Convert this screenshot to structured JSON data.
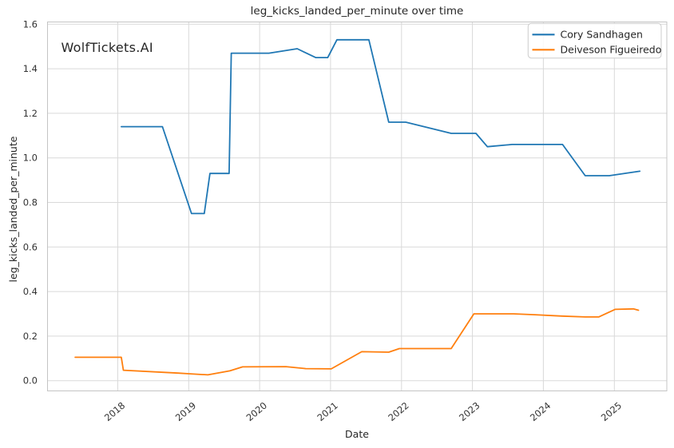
{
  "watermark": {
    "text": "WolfTickets.AI",
    "color": "#cdcdcd"
  },
  "chart_data": {
    "type": "line",
    "title": "leg_kicks_landed_per_minute over time",
    "xlabel": "Date",
    "ylabel": "leg_kicks_landed_per_minute",
    "grid": true,
    "legend_position": "upper-right",
    "x_domain": [
      2017.01,
      2025.74
    ],
    "y_domain": [
      -0.046,
      1.61
    ],
    "x_ticks": [
      {
        "v": 2018,
        "label": "2018"
      },
      {
        "v": 2019,
        "label": "2019"
      },
      {
        "v": 2020,
        "label": "2020"
      },
      {
        "v": 2021,
        "label": "2021"
      },
      {
        "v": 2022,
        "label": "2022"
      },
      {
        "v": 2023,
        "label": "2023"
      },
      {
        "v": 2024,
        "label": "2024"
      },
      {
        "v": 2025,
        "label": "2025"
      }
    ],
    "y_ticks": [
      {
        "v": 0.0,
        "label": "0.0"
      },
      {
        "v": 0.2,
        "label": "0.2"
      },
      {
        "v": 0.4,
        "label": "0.4"
      },
      {
        "v": 0.6,
        "label": "0.6"
      },
      {
        "v": 0.8,
        "label": "0.8"
      },
      {
        "v": 1.0,
        "label": "1.0"
      },
      {
        "v": 1.2,
        "label": "1.2"
      },
      {
        "v": 1.4,
        "label": "1.4"
      },
      {
        "v": 1.6,
        "label": "1.6"
      }
    ],
    "colors": {
      "grid": "#d9d9d9",
      "spine": "#c4c4c4",
      "legend_border": "#cccccc",
      "text": "#262626"
    },
    "series": [
      {
        "name": "Cory Sandhagen",
        "color": "#1f77b4",
        "points": [
          [
            2018.05,
            1.14
          ],
          [
            2018.63,
            1.14
          ],
          [
            2019.04,
            0.75
          ],
          [
            2019.22,
            0.75
          ],
          [
            2019.3,
            0.93
          ],
          [
            2019.57,
            0.93
          ],
          [
            2019.6,
            1.47
          ],
          [
            2020.13,
            1.47
          ],
          [
            2020.53,
            1.49
          ],
          [
            2020.79,
            1.45
          ],
          [
            2020.96,
            1.45
          ],
          [
            2021.09,
            1.53
          ],
          [
            2021.54,
            1.53
          ],
          [
            2021.82,
            1.16
          ],
          [
            2022.06,
            1.16
          ],
          [
            2022.7,
            1.11
          ],
          [
            2023.05,
            1.11
          ],
          [
            2023.21,
            1.05
          ],
          [
            2023.56,
            1.06
          ],
          [
            2024.27,
            1.06
          ],
          [
            2024.59,
            0.92
          ],
          [
            2024.93,
            0.92
          ],
          [
            2025.36,
            0.94
          ]
        ]
      },
      {
        "name": "Deiveson Figueiredo",
        "color": "#ff7f0e",
        "points": [
          [
            2017.4,
            0.105
          ],
          [
            2018.05,
            0.105
          ],
          [
            2018.08,
            0.047
          ],
          [
            2018.85,
            0.034
          ],
          [
            2019.0,
            0.031
          ],
          [
            2019.27,
            0.026
          ],
          [
            2019.58,
            0.044
          ],
          [
            2019.76,
            0.062
          ],
          [
            2020.37,
            0.063
          ],
          [
            2020.65,
            0.054
          ],
          [
            2021.01,
            0.053
          ],
          [
            2021.44,
            0.13
          ],
          [
            2021.82,
            0.128
          ],
          [
            2021.97,
            0.144
          ],
          [
            2022.7,
            0.144
          ],
          [
            2023.02,
            0.3
          ],
          [
            2023.58,
            0.3
          ],
          [
            2023.88,
            0.296
          ],
          [
            2024.26,
            0.29
          ],
          [
            2024.59,
            0.286
          ],
          [
            2024.78,
            0.286
          ],
          [
            2025.01,
            0.32
          ],
          [
            2025.27,
            0.322
          ],
          [
            2025.34,
            0.316
          ]
        ]
      }
    ]
  }
}
